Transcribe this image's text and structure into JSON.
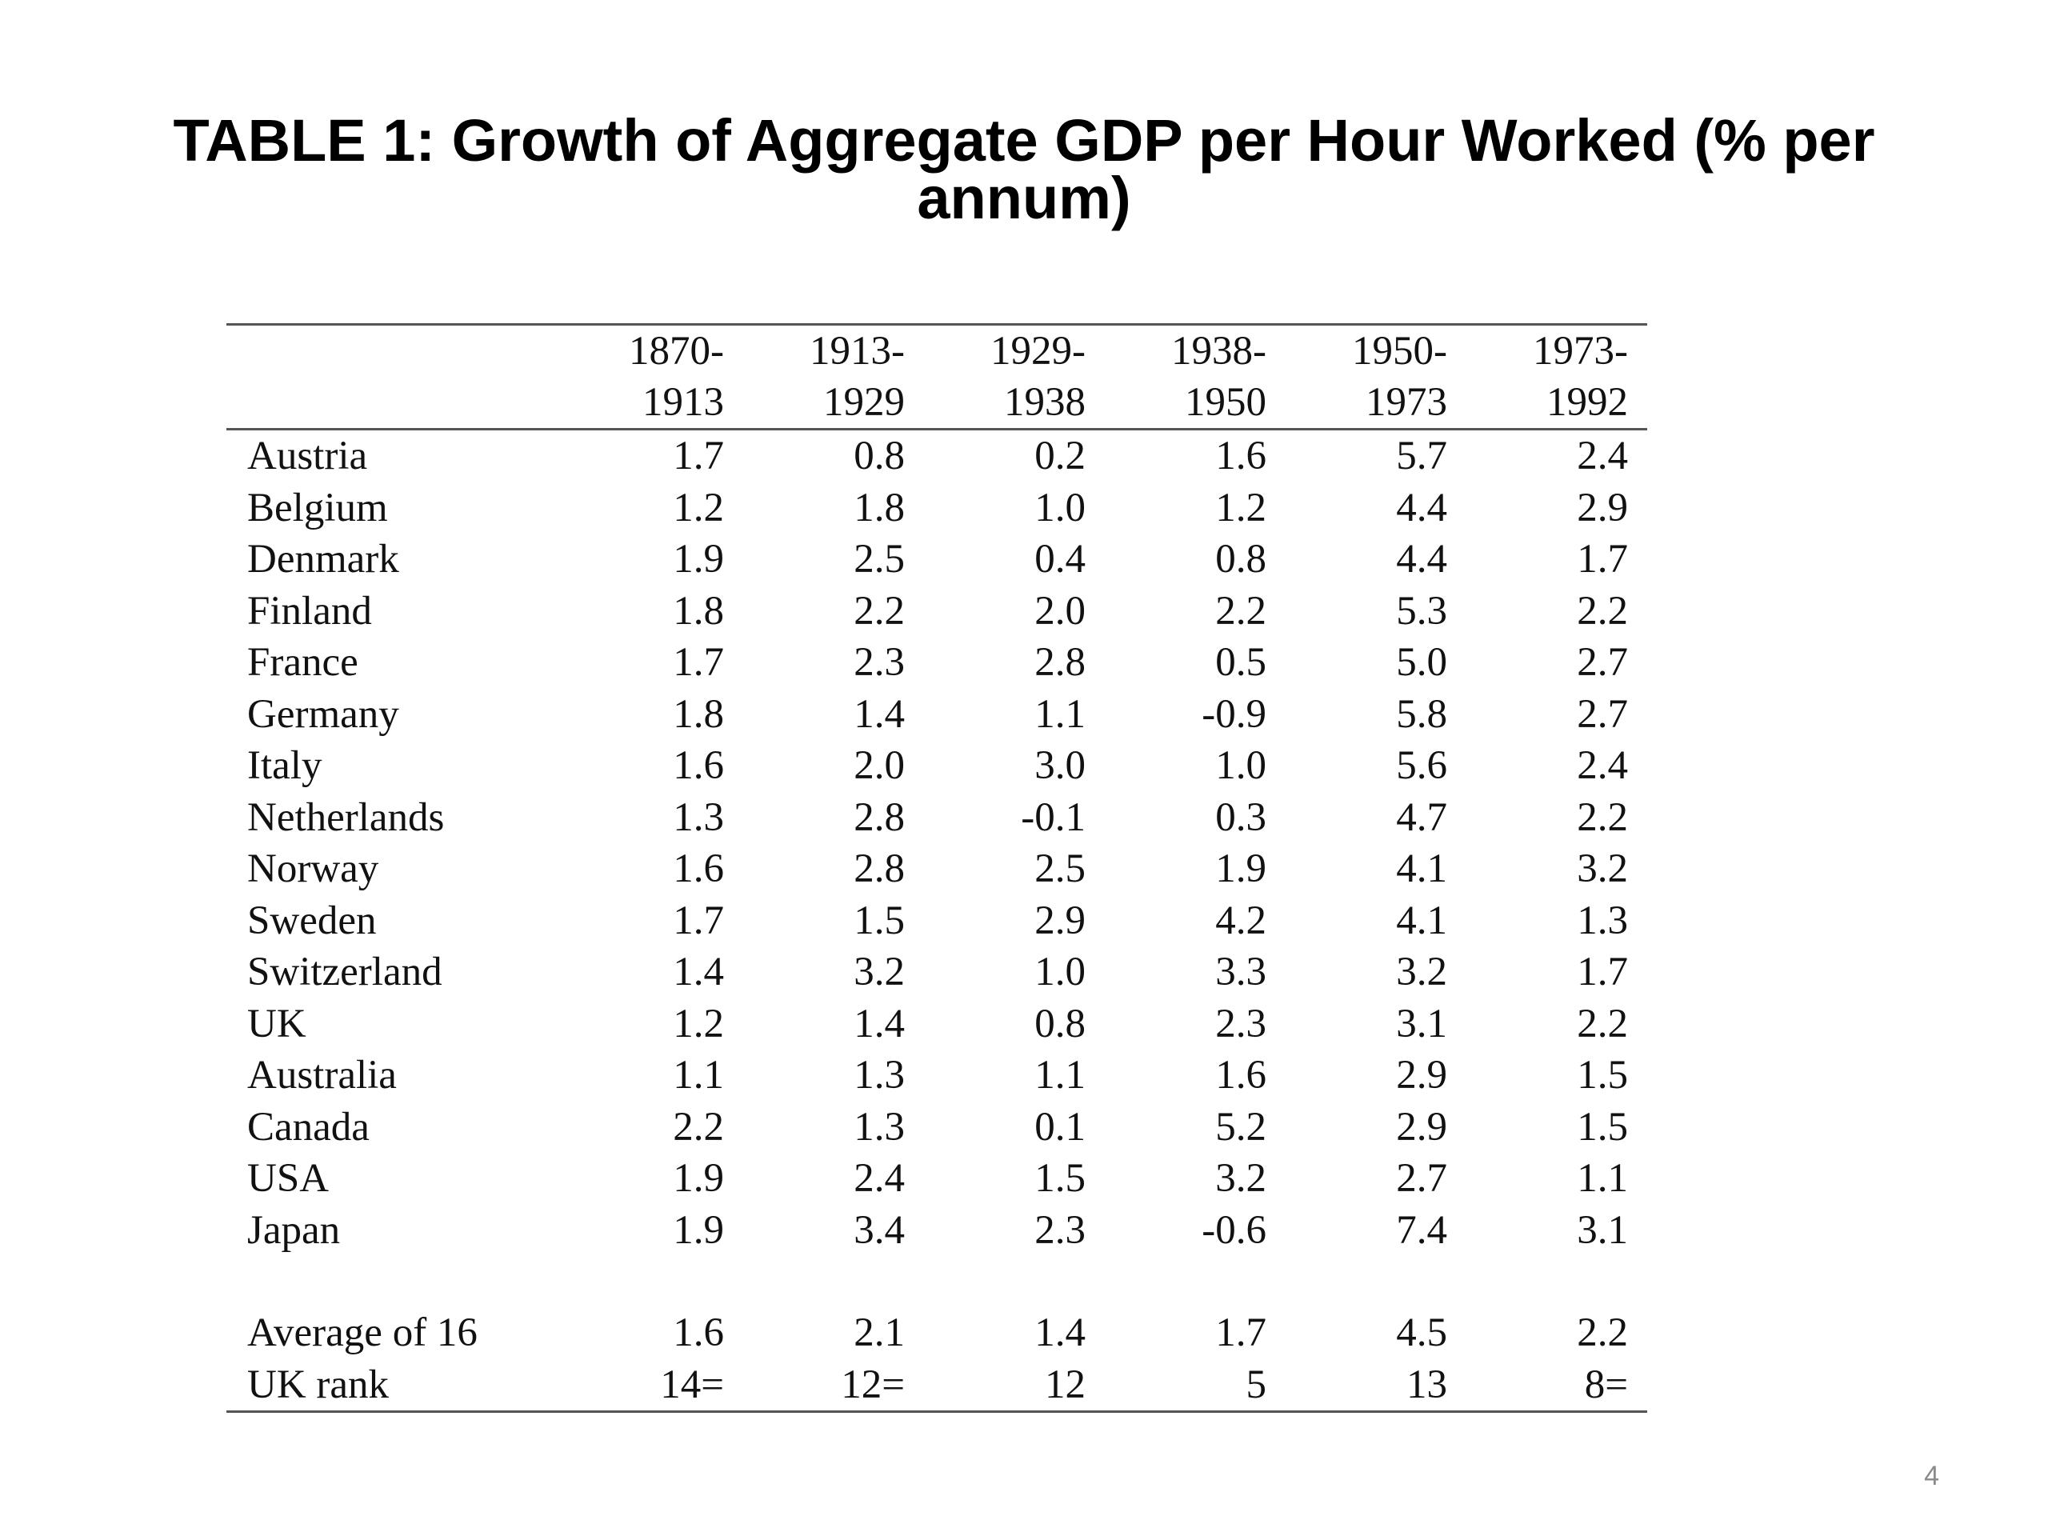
{
  "title": {
    "line1": "TABLE 1: Growth of Aggregate GDP per Hour Worked (% per",
    "line2": "annum)"
  },
  "table": {
    "headers": [
      {
        "start": "1870-",
        "end": "1913"
      },
      {
        "start": "1913-",
        "end": "1929"
      },
      {
        "start": "1929-",
        "end": "1938"
      },
      {
        "start": "1938-",
        "end": "1950"
      },
      {
        "start": "1950-",
        "end": "1973"
      },
      {
        "start": "1973-",
        "end": "1992"
      }
    ],
    "rows": [
      {
        "country": "Austria",
        "values": [
          "1.7",
          "0.8",
          "0.2",
          "1.6",
          "5.7",
          "2.4"
        ]
      },
      {
        "country": "Belgium",
        "values": [
          "1.2",
          "1.8",
          "1.0",
          "1.2",
          "4.4",
          "2.9"
        ]
      },
      {
        "country": "Denmark",
        "values": [
          "1.9",
          "2.5",
          "0.4",
          "0.8",
          "4.4",
          "1.7"
        ]
      },
      {
        "country": "Finland",
        "values": [
          "1.8",
          "2.2",
          "2.0",
          "2.2",
          "5.3",
          "2.2"
        ]
      },
      {
        "country": "France",
        "values": [
          "1.7",
          "2.3",
          "2.8",
          "0.5",
          "5.0",
          "2.7"
        ]
      },
      {
        "country": "Germany",
        "values": [
          "1.8",
          "1.4",
          "1.1",
          "-0.9",
          "5.8",
          "2.7"
        ]
      },
      {
        "country": "Italy",
        "values": [
          "1.6",
          "2.0",
          "3.0",
          "1.0",
          "5.6",
          "2.4"
        ]
      },
      {
        "country": "Netherlands",
        "values": [
          "1.3",
          "2.8",
          "-0.1",
          "0.3",
          "4.7",
          "2.2"
        ]
      },
      {
        "country": "Norway",
        "values": [
          "1.6",
          "2.8",
          "2.5",
          "1.9",
          "4.1",
          "3.2"
        ]
      },
      {
        "country": "Sweden",
        "values": [
          "1.7",
          "1.5",
          "2.9",
          "4.2",
          "4.1",
          "1.3"
        ]
      },
      {
        "country": "Switzerland",
        "values": [
          "1.4",
          "3.2",
          "1.0",
          "3.3",
          "3.2",
          "1.7"
        ]
      },
      {
        "country": "UK",
        "values": [
          "1.2",
          "1.4",
          "0.8",
          "2.3",
          "3.1",
          "2.2"
        ]
      },
      {
        "country": "Australia",
        "values": [
          "1.1",
          "1.3",
          "1.1",
          "1.6",
          "2.9",
          "1.5"
        ]
      },
      {
        "country": "Canada",
        "values": [
          "2.2",
          "1.3",
          "0.1",
          "5.2",
          "2.9",
          "1.5"
        ]
      },
      {
        "country": "USA",
        "values": [
          "1.9",
          "2.4",
          "1.5",
          "3.2",
          "2.7",
          "1.1"
        ]
      },
      {
        "country": "Japan",
        "values": [
          "1.9",
          "3.4",
          "2.3",
          "-0.6",
          "7.4",
          "3.1"
        ]
      }
    ],
    "summary": [
      {
        "country": "Average of 16",
        "values": [
          "1.6",
          "2.1",
          "1.4",
          "1.7",
          "4.5",
          "2.2"
        ]
      },
      {
        "country": "UK rank",
        "values": [
          "14=",
          "12=",
          "12",
          "5",
          "13",
          "8="
        ]
      }
    ]
  },
  "page_number": "4"
}
